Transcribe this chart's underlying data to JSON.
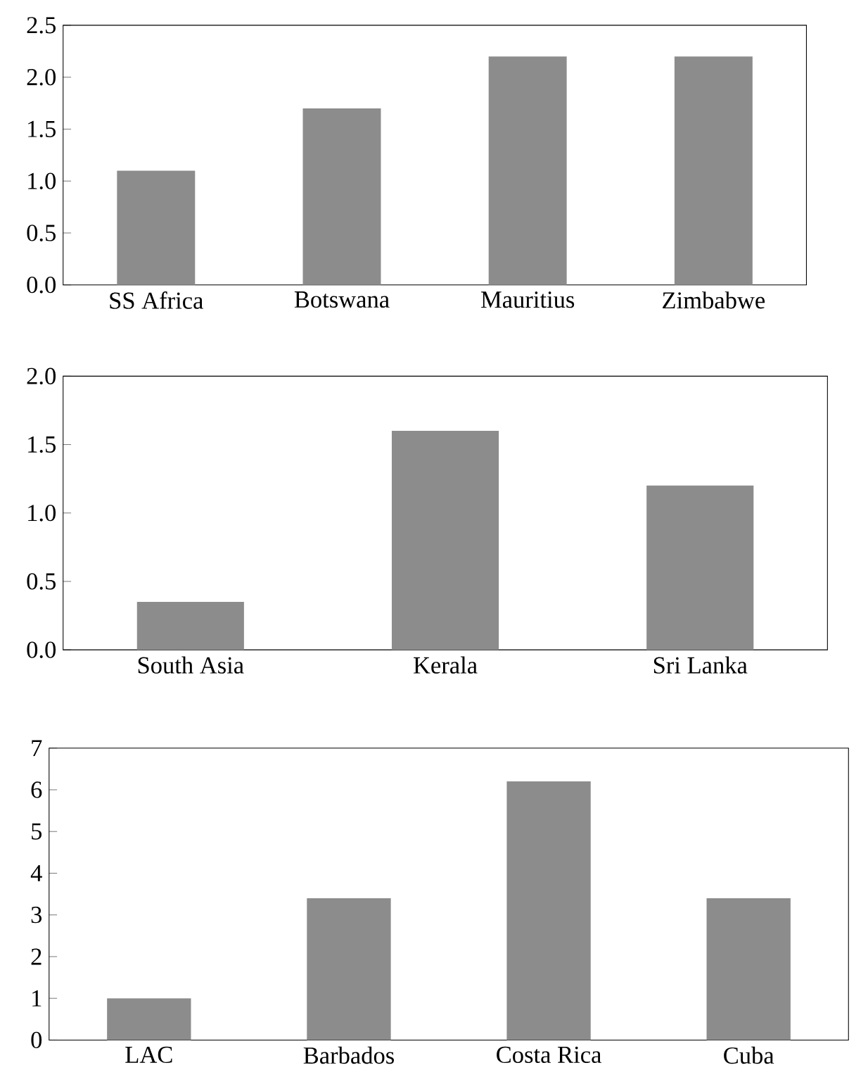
{
  "chart_data": [
    {
      "type": "bar",
      "categories": [
        "SS Africa",
        "Botswana",
        "Mauritius",
        "Zimbabwe"
      ],
      "values": [
        1.1,
        1.7,
        2.2,
        2.2
      ],
      "color": "#8c8c8c",
      "ylim": [
        0,
        2.5
      ],
      "yticks": [
        {
          "value": 0,
          "label": "0.0"
        },
        {
          "value": 0.5,
          "label": "0.5"
        },
        {
          "value": 1,
          "label": "1.0"
        },
        {
          "value": 1.5,
          "label": "1.5"
        },
        {
          "value": 2,
          "label": "2.0"
        },
        {
          "value": 2.5,
          "label": "2.5"
        }
      ]
    },
    {
      "type": "bar",
      "categories": [
        "South Asia",
        "Kerala",
        "Sri Lanka"
      ],
      "values": [
        0.35,
        1.6,
        1.2
      ],
      "color": "#8c8c8c",
      "ylim": [
        0,
        2
      ],
      "yticks": [
        {
          "value": 0,
          "label": "0.0"
        },
        {
          "value": 0.5,
          "label": "0.5"
        },
        {
          "value": 1,
          "label": "1.0"
        },
        {
          "value": 1.5,
          "label": "1.5"
        },
        {
          "value": 2,
          "label": "2.0"
        }
      ]
    },
    {
      "type": "bar",
      "categories": [
        "LAC",
        "Barbados",
        "Costa Rica",
        "Cuba"
      ],
      "values": [
        1.0,
        3.4,
        6.2,
        3.4
      ],
      "color": "#8c8c8c",
      "ylim": [
        0,
        7
      ],
      "yticks": [
        0,
        1,
        2,
        3,
        4,
        5,
        6,
        7
      ]
    }
  ]
}
